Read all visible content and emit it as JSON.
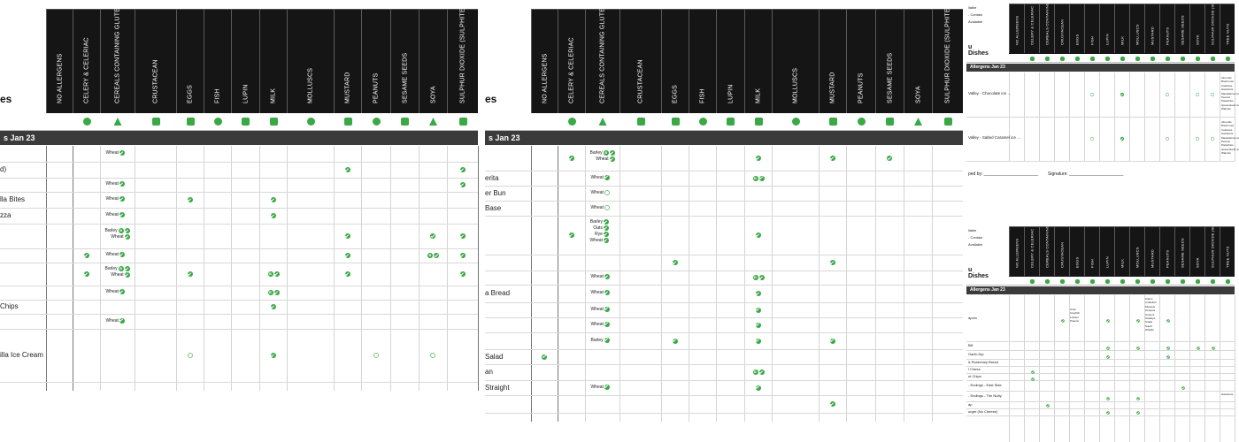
{
  "columns": [
    "NO ALLERGENS",
    "CELERY & CELERIAC",
    "CEREALS CONTAINING GLUTEN",
    "CRUSTACEAN",
    "EGGS",
    "FISH",
    "LUPIN",
    "MILK",
    "MOLLUSCS",
    "MUSTARD",
    "PEANUTS",
    "SESAME SEEDS",
    "SOYA",
    "SULPHUR DIOXIDE (SULPHITES)"
  ],
  "columns_small": [
    "NO ALLERGENS",
    "CELERY & CELERIAC",
    "CEREALS CONTAINING GLUTEN",
    "CRUSTACEAN",
    "EGGS",
    "FISH",
    "LUPIN",
    "MILK",
    "MOLLUSCS",
    "MUSTARD",
    "PEANUTS",
    "SESAME SEEDS",
    "SOYA",
    "SULPHUR DIOXIDE (SULPHITES)",
    "TREE NUTS"
  ],
  "icons": [
    "no-allergen-icon",
    "celery-icon",
    "gluten-icon",
    "crustacean-icon",
    "egg-icon",
    "fish-icon",
    "lupin-icon",
    "milk-icon",
    "mollusc-icon",
    "mustard-icon",
    "peanut-icon",
    "sesame-icon",
    "soya-icon",
    "sulphite-icon"
  ],
  "colors": {
    "header": "#151515",
    "section": "#3b3b3b",
    "accent": "#3aa845"
  },
  "page1": {
    "title": "es",
    "section": "s Jan 23",
    "rows": [
      {
        "name": ""
      },
      {
        "name": "d)"
      },
      {
        "name": ""
      },
      {
        "name": "lla Bites"
      },
      {
        "name": "zza"
      },
      {
        "name": ""
      },
      {
        "name": ""
      },
      {
        "name": ""
      },
      {
        "name": ""
      },
      {
        "name": "Chips"
      },
      {
        "name": ""
      },
      {
        "name": "illa Ice Cream"
      }
    ],
    "marks": [
      {
        "row": 0,
        "col": 2,
        "text": "Wheat"
      },
      {
        "row": 1,
        "col": 9
      },
      {
        "row": 1,
        "col": 13
      },
      {
        "row": 2,
        "col": 2,
        "text": "Wheat"
      },
      {
        "row": 2,
        "col": 13
      },
      {
        "row": 3,
        "col": 2,
        "text": "Wheat"
      },
      {
        "row": 3,
        "col": 4
      },
      {
        "row": 3,
        "col": 7
      },
      {
        "row": 4,
        "col": 2,
        "text": "Wheat"
      },
      {
        "row": 4,
        "col": 7
      },
      {
        "row": 5,
        "col": 2,
        "lines": [
          "Barley",
          "Wheat"
        ],
        "badge": "B"
      },
      {
        "row": 5,
        "col": 9
      },
      {
        "row": 5,
        "col": 12
      },
      {
        "row": 5,
        "col": 13
      },
      {
        "row": 6,
        "col": 1
      },
      {
        "row": 6,
        "col": 2,
        "text": "Wheat"
      },
      {
        "row": 6,
        "col": 9
      },
      {
        "row": 6,
        "col": 12,
        "badge": "B"
      },
      {
        "row": 6,
        "col": 13
      },
      {
        "row": 7,
        "col": 1
      },
      {
        "row": 7,
        "col": 2,
        "lines": [
          "Barley",
          "Wheat"
        ],
        "badge": "B"
      },
      {
        "row": 7,
        "col": 4
      },
      {
        "row": 7,
        "col": 7,
        "badge": "B"
      },
      {
        "row": 7,
        "col": 9
      },
      {
        "row": 7,
        "col": 13
      },
      {
        "row": 8,
        "col": 2,
        "text": "Wheat"
      },
      {
        "row": 8,
        "col": 7,
        "badge": "B"
      },
      {
        "row": 9,
        "col": 7
      },
      {
        "row": 10,
        "col": 2,
        "text": "Wheat"
      },
      {
        "row": 11,
        "col": 4,
        "m": true
      },
      {
        "row": 11,
        "col": 7
      },
      {
        "row": 11,
        "col": 10,
        "m": true
      },
      {
        "row": 11,
        "col": 12,
        "m": true
      }
    ]
  },
  "page2": {
    "title": "es",
    "section": "s Jan 23",
    "rows": [
      {
        "name": ""
      },
      {
        "name": "erita"
      },
      {
        "name": "er Bun"
      },
      {
        "name": " Base"
      },
      {
        "name": ""
      },
      {
        "name": ""
      },
      {
        "name": ""
      },
      {
        "name": "a Bread"
      },
      {
        "name": ""
      },
      {
        "name": ""
      },
      {
        "name": ""
      },
      {
        "name": " Salad"
      },
      {
        "name": "an"
      },
      {
        "name": "Straight"
      },
      {
        "name": ""
      }
    ],
    "marks": [
      {
        "row": 0,
        "col": 1
      },
      {
        "row": 0,
        "col": 2,
        "lines": [
          "Barley",
          "Wheat"
        ],
        "badge": "B"
      },
      {
        "row": 0,
        "col": 7
      },
      {
        "row": 0,
        "col": 9
      },
      {
        "row": 0,
        "col": 11
      },
      {
        "row": 1,
        "col": 2,
        "text": "Wheat"
      },
      {
        "row": 1,
        "col": 7,
        "badge": "B"
      },
      {
        "row": 2,
        "col": 2,
        "text": "Wheat",
        "mm": true
      },
      {
        "row": 3,
        "col": 2,
        "text": "Wheat",
        "mm": true
      },
      {
        "row": 4,
        "col": 1
      },
      {
        "row": 4,
        "col": 2,
        "lines": [
          "Barley",
          "Oats",
          "Rye",
          "Wheat"
        ]
      },
      {
        "row": 4,
        "col": 7
      },
      {
        "row": 5,
        "col": 4
      },
      {
        "row": 5,
        "col": 9
      },
      {
        "row": 6,
        "col": 2,
        "text": "Wheat"
      },
      {
        "row": 6,
        "col": 7,
        "badge": "B"
      },
      {
        "row": 7,
        "col": 2,
        "text": "Wheat"
      },
      {
        "row": 7,
        "col": 7
      },
      {
        "row": 8,
        "col": 2,
        "text": "Wheat"
      },
      {
        "row": 8,
        "col": 7
      },
      {
        "row": 9,
        "col": 2,
        "text": "Wheat"
      },
      {
        "row": 9,
        "col": 7
      },
      {
        "row": 10,
        "col": 2,
        "text": "Barley"
      },
      {
        "row": 10,
        "col": 4
      },
      {
        "row": 10,
        "col": 7
      },
      {
        "row": 10,
        "col": 9
      },
      {
        "row": 11,
        "col": 0
      },
      {
        "row": 12,
        "col": 7,
        "badge": "B"
      },
      {
        "row": 13,
        "col": 2,
        "text": "Wheat"
      },
      {
        "row": 13,
        "col": 7
      },
      {
        "row": 14,
        "col": 9
      }
    ]
  },
  "page3": {
    "top_labels": [
      "ilable",
      "- Contain",
      "Available"
    ],
    "title": "u Dishes",
    "section": "Allergens Jan 23",
    "dishes": [
      "Valley - Chocolate ice ...",
      "Valley - Salted Caramel ice ..."
    ],
    "nuts": [
      "Almonds",
      "Brazil nuts",
      "Cashews",
      "Hazelnuts",
      "Macadamia nuts",
      "Pecans",
      "Pistachios",
      "Queensland nuts",
      "Walnuts"
    ],
    "signed_by": "ped by: ______________________",
    "signature": "Signature: ______________________"
  },
  "page4": {
    "top_labels": [
      "ilable",
      "- Contain",
      "Available"
    ],
    "title": "u Dishes",
    "section": "Allergens Jan 23",
    "dishes": [
      "apolo",
      "",
      "Bill",
      "Garlic Dip",
      "& Rosemary Bread",
      "l Chees",
      "ut Chips",
      "- Endings - East Side",
      "- Endings - The Nutty",
      "ap",
      "urger (No Cheese)"
    ],
    "crustacean": [
      "Crab",
      "Crayfish",
      "Lobster",
      "Prawns"
    ],
    "molluscs": [
      "Clams",
      "Cuttlefish",
      "Mussels",
      "Octopus",
      "Oysters",
      "Scallops",
      "Snails",
      "Squid",
      "Whelks"
    ],
    "tree_nut_label": "Hazelnuts"
  }
}
